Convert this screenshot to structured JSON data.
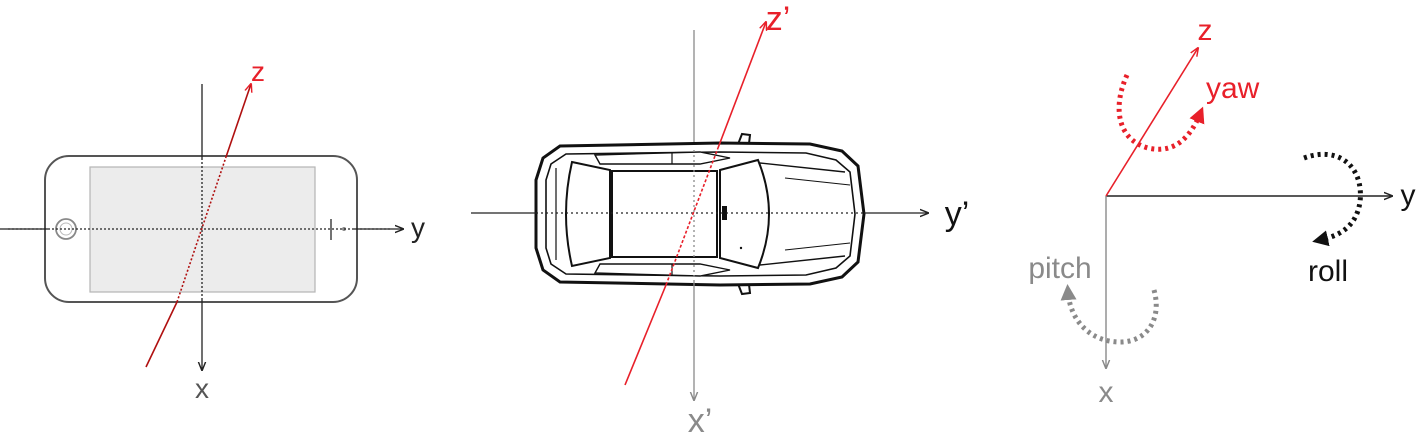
{
  "panel_phone": {
    "axis_x": "x",
    "axis_y": "y",
    "axis_z": "z"
  },
  "panel_car": {
    "axis_x": "x’",
    "axis_y": "y’",
    "axis_z": "z’"
  },
  "panel_rotation": {
    "axis_x": "x",
    "axis_y": "y",
    "axis_z": "z",
    "yaw": "yaw",
    "pitch": "pitch",
    "roll": "roll"
  },
  "colors": {
    "red": "#e8202a",
    "dark": "#222222",
    "gray": "#8a8a8a",
    "light_gray": "#9a9a9a"
  }
}
